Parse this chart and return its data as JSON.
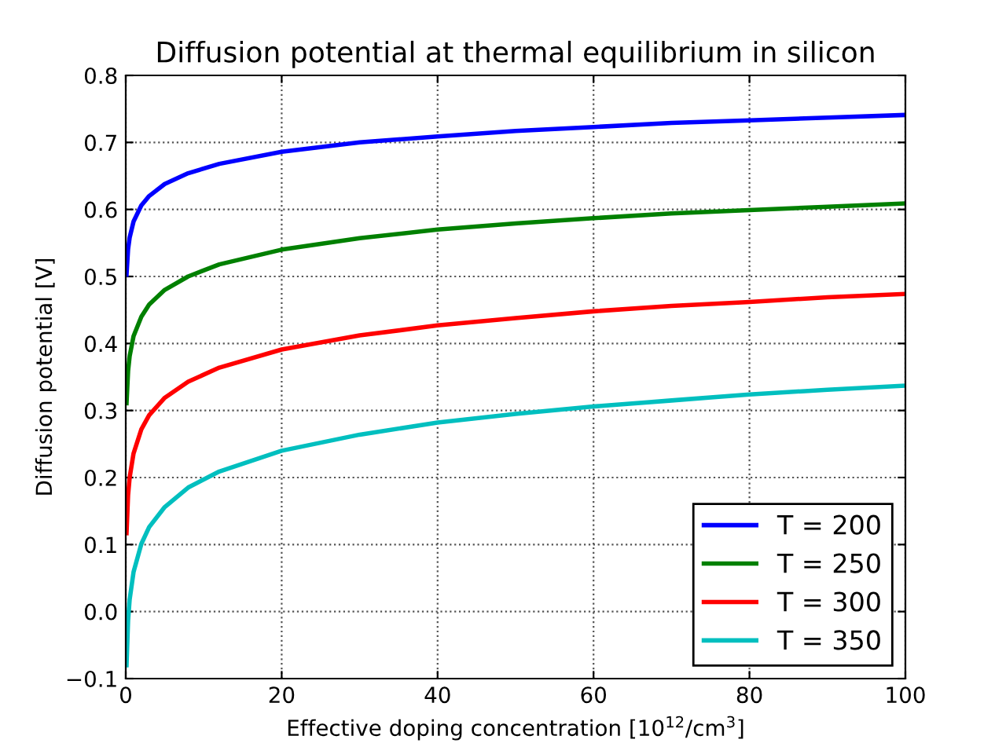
{
  "chart_data": {
    "type": "line",
    "title": "Diffusion potential at thermal equilibrium in silicon",
    "xlabel": "Effective doping concentration [10$^{12}$/cm$^{3}$]",
    "ylabel": "Diffusion potential [V]",
    "x": [
      0.1,
      0.3,
      0.5,
      1,
      2,
      3,
      5,
      8,
      12,
      20,
      30,
      40,
      50,
      60,
      70,
      80,
      90,
      100
    ],
    "series": [
      {
        "name": "T = 200",
        "color": "#0000ff",
        "values": [
          0.503,
          0.541,
          0.558,
          0.582,
          0.606,
          0.62,
          0.638,
          0.654,
          0.668,
          0.686,
          0.7,
          0.709,
          0.717,
          0.723,
          0.729,
          0.733,
          0.737,
          0.741
        ]
      },
      {
        "name": "T = 250",
        "color": "#008000",
        "values": [
          0.311,
          0.359,
          0.381,
          0.411,
          0.44,
          0.458,
          0.48,
          0.5,
          0.518,
          0.54,
          0.557,
          0.57,
          0.579,
          0.587,
          0.594,
          0.599,
          0.604,
          0.609
        ]
      },
      {
        "name": "T = 300",
        "color": "#ff0000",
        "values": [
          0.117,
          0.174,
          0.2,
          0.236,
          0.272,
          0.293,
          0.319,
          0.343,
          0.364,
          0.391,
          0.412,
          0.427,
          0.438,
          0.448,
          0.456,
          0.462,
          0.469,
          0.474
        ]
      },
      {
        "name": "T = 350",
        "color": "#00bfbf",
        "values": [
          -0.08,
          -0.013,
          0.018,
          0.059,
          0.101,
          0.126,
          0.156,
          0.185,
          0.209,
          0.24,
          0.264,
          0.282,
          0.295,
          0.306,
          0.315,
          0.324,
          0.331,
          0.337
        ]
      }
    ],
    "xlim": [
      0,
      100
    ],
    "xticks": [
      0,
      20,
      40,
      60,
      80,
      100
    ],
    "ylim": [
      -0.1,
      0.8
    ],
    "yticks": [
      {
        "value": -0.1,
        "label": "−0.1"
      },
      {
        "value": 0.0,
        "label": "0.0"
      },
      {
        "value": 0.1,
        "label": "0.1"
      },
      {
        "value": 0.2,
        "label": "0.2"
      },
      {
        "value": 0.3,
        "label": "0.3"
      },
      {
        "value": 0.4,
        "label": "0.4"
      },
      {
        "value": 0.5,
        "label": "0.5"
      },
      {
        "value": 0.6,
        "label": "0.6"
      },
      {
        "value": 0.7,
        "label": "0.7"
      },
      {
        "value": 0.8,
        "label": "0.8"
      }
    ],
    "grid": true,
    "legend": "lower right",
    "marker": "none",
    "line_style": "solid"
  }
}
